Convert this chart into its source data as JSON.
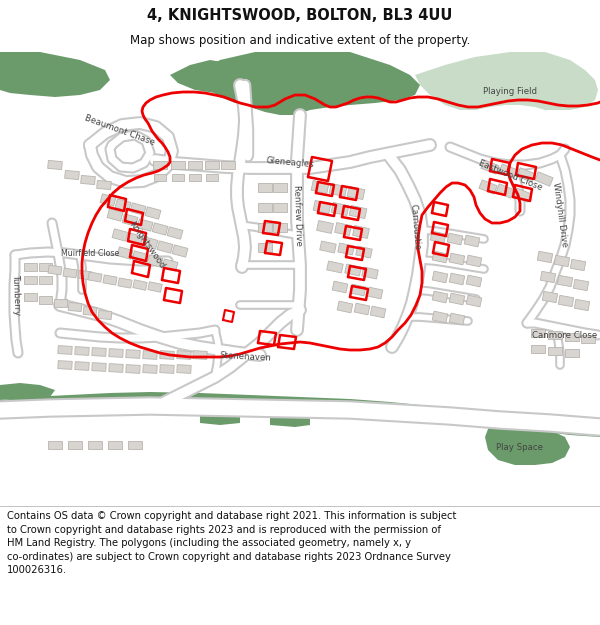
{
  "title": "4, KNIGHTSWOOD, BOLTON, BL3 4UU",
  "subtitle": "Map shows position and indicative extent of the property.",
  "footer": "Contains OS data © Crown copyright and database right 2021. This information is subject\nto Crown copyright and database rights 2023 and is reproduced with the permission of\nHM Land Registry. The polygons (including the associated geometry, namely x, y\nco-ordinates) are subject to Crown copyright and database rights 2023 Ordnance Survey\n100026316.",
  "bg_color": "#ffffff",
  "map_bg": "#f0efeb",
  "road_fill": "#ffffff",
  "road_edge": "#c8c8c8",
  "building_fill": "#d8d5d0",
  "building_edge": "#b8b5b0",
  "green_dark": "#6b9b6b",
  "green_light": "#b8d4b8",
  "green_pale": "#c8dcc8",
  "red_line": "#ee0000",
  "title_fontsize": 10.5,
  "subtitle_fontsize": 8.5,
  "footer_fontsize": 7.2,
  "label_fontsize": 6.2,
  "label_color": "#444444"
}
